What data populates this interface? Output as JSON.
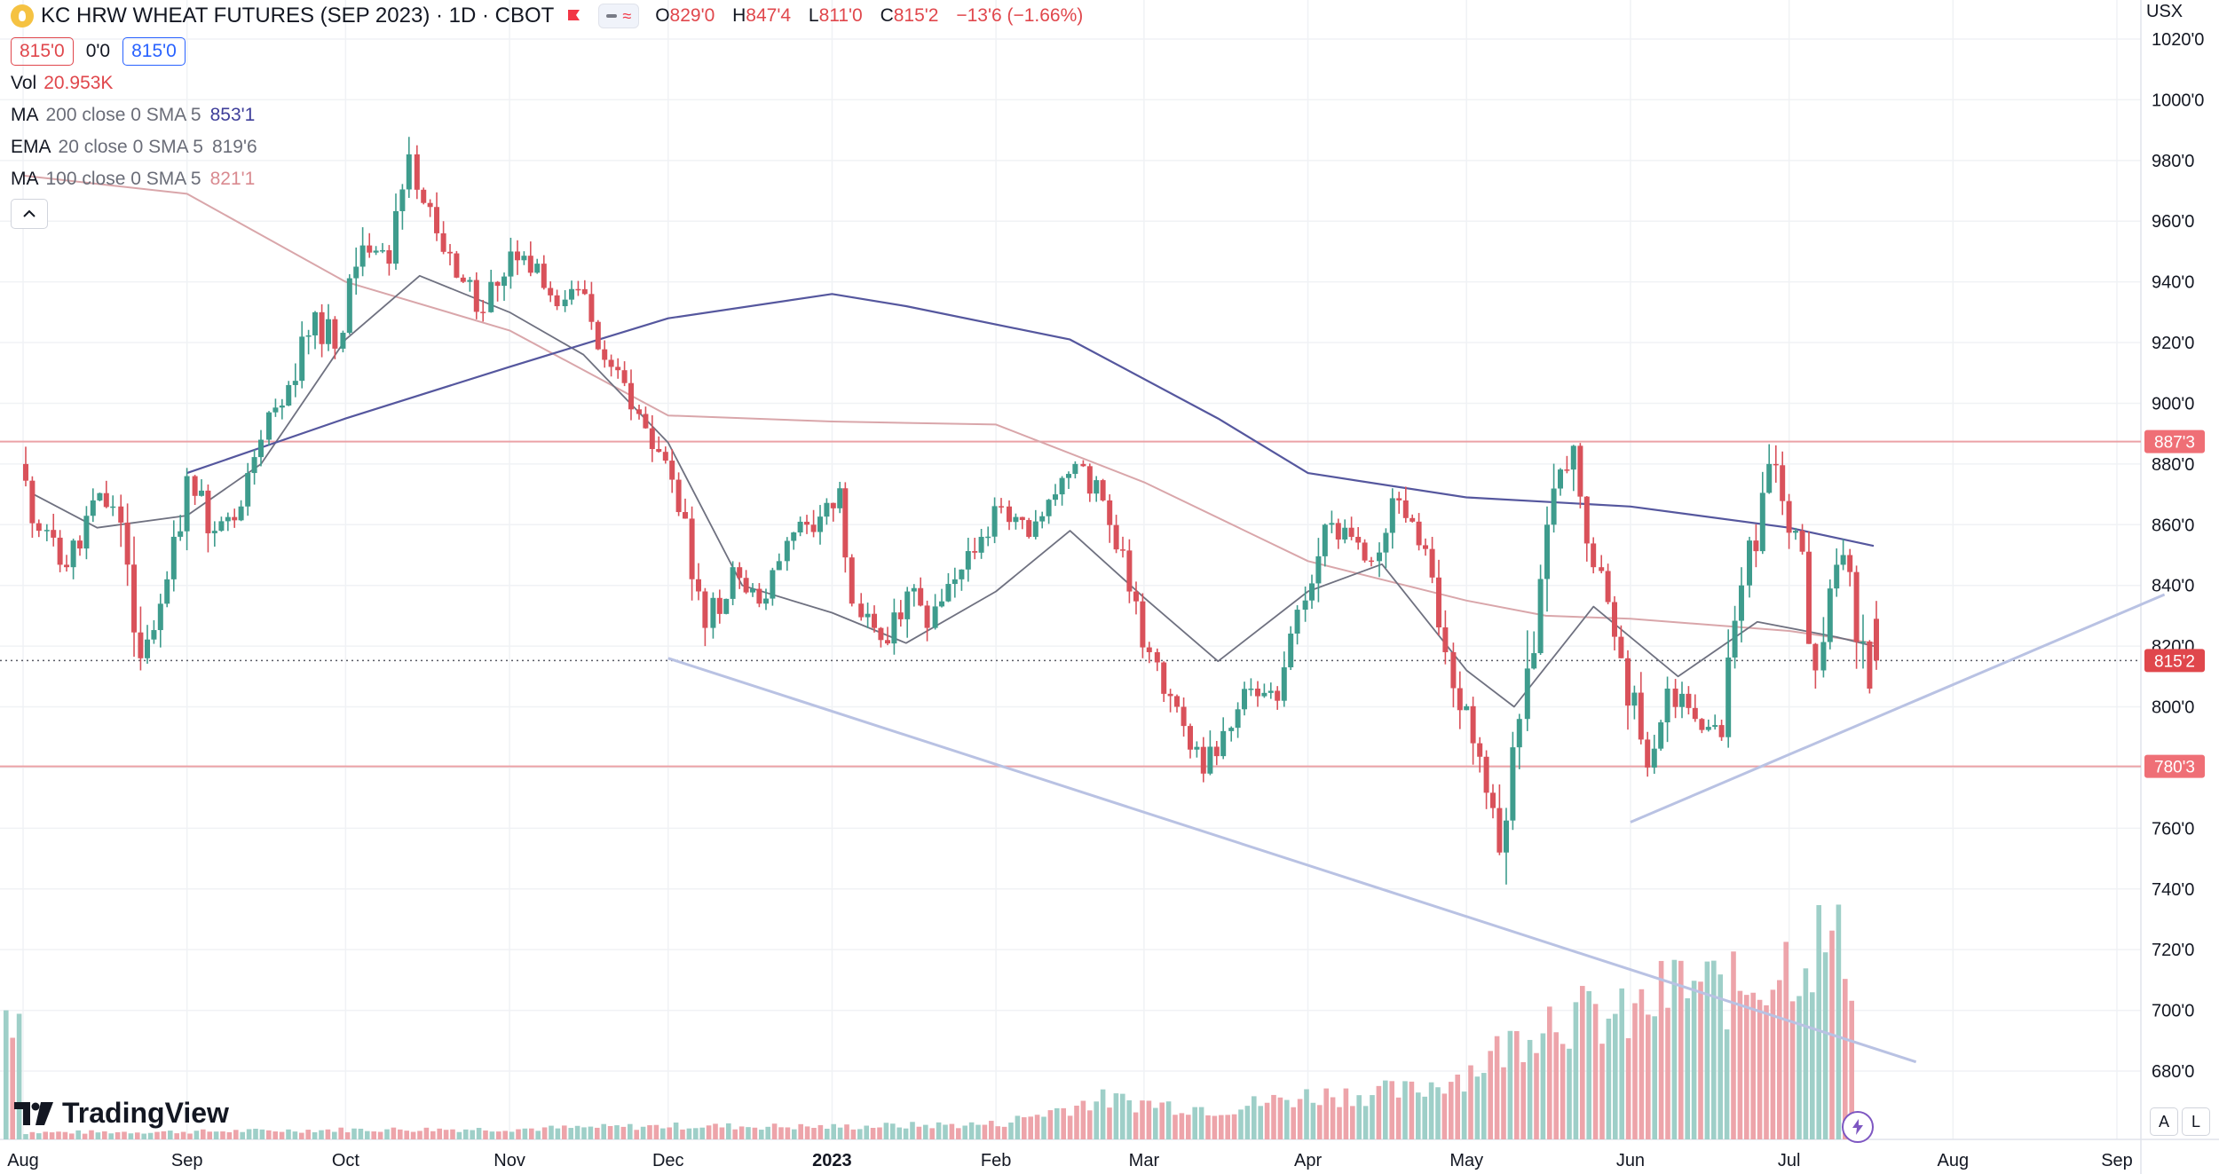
{
  "header": {
    "symbol_title": "KC HRW WHEAT FUTURES (SEP 2023) · 1D · CBOT",
    "logo_icon": "wheat-logo-icon",
    "flag_icon": "flag-icon",
    "ohlc": {
      "o_label": "O",
      "o_value": "829'0",
      "h_label": "H",
      "h_value": "847'4",
      "l_label": "L",
      "l_value": "811'0",
      "c_label": "C",
      "c_value": "815'2",
      "change": "−13'6 (−1.66%)"
    },
    "bid": "815'0",
    "spread": "0'0",
    "ask": "815'0"
  },
  "indicators": {
    "vol": {
      "name": "Vol",
      "value": "20.953K"
    },
    "ma200": {
      "name": "MA",
      "params": "200 close 0 SMA 5",
      "value": "853'1",
      "color": "#5d5fa7"
    },
    "ema20": {
      "name": "EMA",
      "params": "20 close 0 SMA 5",
      "value": "819'6",
      "color": "#7a7c8c"
    },
    "ma100": {
      "name": "MA",
      "params": "100 close 0 SMA 5",
      "value": "821'1",
      "color": "#d99fa3"
    }
  },
  "currency": "USX",
  "branding": "TradingView",
  "corner_buttons": {
    "auto": "A",
    "log": "L"
  },
  "colors": {
    "up": "#3e9c8d",
    "down": "#d9515a",
    "vol_up": "#9ecfc8",
    "vol_down": "#eda4aa",
    "hline": "#eba2a6",
    "trendline": "#b9c2e3"
  },
  "chart_data": {
    "type": "candlestick",
    "title": "KC HRW WHEAT FUTURES (SEP 2023) · 1D · CBOT",
    "x_axis_labels": [
      "Aug",
      "Sep",
      "Oct",
      "Nov",
      "Dec",
      "2023",
      "Feb",
      "Mar",
      "Apr",
      "May",
      "Jun",
      "Jul",
      "Aug",
      "Sep"
    ],
    "y_axis_labels": [
      "680'0",
      "700'0",
      "720'0",
      "740'0",
      "760'0",
      "780'0",
      "800'0",
      "820'0",
      "840'0",
      "860'0",
      "880'0",
      "900'0",
      "920'0",
      "940'0",
      "960'0",
      "980'0",
      "1000'0",
      "1020'0"
    ],
    "ylim": [
      668,
      1024
    ],
    "price_lines": [
      {
        "label": "887'3",
        "value": 887.4
      },
      {
        "label": "780'3",
        "value": 780.4
      },
      {
        "label": "815'2",
        "value": 815.25
      }
    ],
    "trendlines": [
      {
        "from": [
          "2022-12-01",
          816
        ],
        "to": [
          "2023-07-25",
          683
        ]
      },
      {
        "from": [
          "2023-06-01",
          762
        ],
        "to": [
          "2023-09-10",
          837
        ]
      }
    ],
    "ma200": [
      [
        "2022-09-01",
        877
      ],
      [
        "2022-10-01",
        895
      ],
      [
        "2022-11-01",
        912
      ],
      [
        "2022-12-01",
        928
      ],
      [
        "2023-01-01",
        936
      ],
      [
        "2023-01-15",
        932
      ],
      [
        "2023-02-15",
        921
      ],
      [
        "2023-03-15",
        895
      ],
      [
        "2023-04-01",
        877
      ],
      [
        "2023-05-01",
        869
      ],
      [
        "2023-06-01",
        866
      ],
      [
        "2023-07-01",
        859
      ],
      [
        "2023-07-17",
        853
      ]
    ],
    "ma100": [
      [
        "2022-08-01",
        975
      ],
      [
        "2022-09-01",
        969
      ],
      [
        "2022-10-01",
        940
      ],
      [
        "2022-11-01",
        924
      ],
      [
        "2022-12-01",
        896
      ],
      [
        "2023-01-01",
        894
      ],
      [
        "2023-02-01",
        893
      ],
      [
        "2023-03-01",
        874
      ],
      [
        "2023-04-01",
        848
      ],
      [
        "2023-05-01",
        835
      ],
      [
        "2023-05-16",
        830
      ],
      [
        "2023-06-01",
        829
      ],
      [
        "2023-07-01",
        825
      ],
      [
        "2023-07-17",
        821
      ]
    ],
    "ema20": [
      [
        "2022-08-03",
        870
      ],
      [
        "2022-08-15",
        859
      ],
      [
        "2022-09-01",
        863
      ],
      [
        "2022-09-15",
        880
      ],
      [
        "2022-10-01",
        921
      ],
      [
        "2022-10-15",
        942
      ],
      [
        "2022-11-01",
        930
      ],
      [
        "2022-11-15",
        916
      ],
      [
        "2022-12-01",
        887
      ],
      [
        "2022-12-15",
        840
      ],
      [
        "2023-01-01",
        831
      ],
      [
        "2023-01-15",
        821
      ],
      [
        "2023-02-01",
        838
      ],
      [
        "2023-02-15",
        858
      ],
      [
        "2023-03-01",
        836
      ],
      [
        "2023-03-15",
        815
      ],
      [
        "2023-04-01",
        838
      ],
      [
        "2023-04-15",
        847
      ],
      [
        "2023-05-01",
        812
      ],
      [
        "2023-05-10",
        800
      ],
      [
        "2023-05-25",
        833
      ],
      [
        "2023-06-10",
        810
      ],
      [
        "2023-06-25",
        828
      ],
      [
        "2023-07-10",
        823
      ],
      [
        "2023-07-17",
        820
      ]
    ],
    "candles_ohlc": [
      [
        "2022-08-01",
        880,
        887,
        852,
        858
      ],
      [
        "2022-08-05",
        858,
        866,
        835,
        846
      ],
      [
        "2022-08-10",
        846,
        872,
        842,
        868
      ],
      [
        "2022-08-15",
        868,
        884,
        858,
        866
      ],
      [
        "2022-08-19",
        866,
        870,
        812,
        816
      ],
      [
        "2022-08-24",
        816,
        848,
        812,
        842
      ],
      [
        "2022-08-29",
        842,
        880,
        838,
        876
      ],
      [
        "2022-09-02",
        876,
        886,
        850,
        858
      ],
      [
        "2022-09-07",
        858,
        872,
        854,
        866
      ],
      [
        "2022-09-12",
        866,
        892,
        862,
        888
      ],
      [
        "2022-09-16",
        888,
        912,
        882,
        906
      ],
      [
        "2022-09-21",
        906,
        935,
        902,
        930
      ],
      [
        "2022-09-26",
        930,
        950,
        912,
        918
      ],
      [
        "2022-09-30",
        918,
        958,
        914,
        952
      ],
      [
        "2022-10-05",
        952,
        965,
        940,
        946
      ],
      [
        "2022-10-10",
        946,
        990,
        944,
        982
      ],
      [
        "2022-10-14",
        982,
        985,
        950,
        956
      ],
      [
        "2022-10-19",
        956,
        960,
        936,
        940
      ],
      [
        "2022-10-24",
        940,
        948,
        924,
        930
      ],
      [
        "2022-10-28",
        930,
        956,
        926,
        950
      ],
      [
        "2022-11-02",
        950,
        968,
        940,
        946
      ],
      [
        "2022-11-07",
        946,
        950,
        926,
        932
      ],
      [
        "2022-11-11",
        932,
        944,
        920,
        936
      ],
      [
        "2022-11-16",
        936,
        940,
        904,
        912
      ],
      [
        "2022-11-21",
        912,
        918,
        892,
        898
      ],
      [
        "2022-11-25",
        898,
        902,
        878,
        884
      ],
      [
        "2022-11-30",
        884,
        888,
        856,
        862
      ],
      [
        "2022-12-05",
        862,
        866,
        820,
        826
      ],
      [
        "2022-12-09",
        826,
        852,
        820,
        846
      ],
      [
        "2022-12-14",
        846,
        850,
        828,
        834
      ],
      [
        "2022-12-19",
        834,
        852,
        830,
        848
      ],
      [
        "2022-12-23",
        848,
        866,
        840,
        860
      ],
      [
        "2022-12-28",
        860,
        880,
        852,
        872
      ],
      [
        "2023-01-03",
        872,
        874,
        828,
        834
      ],
      [
        "2023-01-06",
        834,
        838,
        816,
        822
      ],
      [
        "2023-01-11",
        822,
        844,
        804,
        838
      ],
      [
        "2023-01-16",
        838,
        852,
        820,
        826
      ],
      [
        "2023-01-20",
        826,
        848,
        820,
        842
      ],
      [
        "2023-01-25",
        842,
        862,
        836,
        856
      ],
      [
        "2023-01-30",
        856,
        870,
        850,
        866
      ],
      [
        "2023-02-03",
        866,
        868,
        850,
        856
      ],
      [
        "2023-02-08",
        856,
        874,
        850,
        870
      ],
      [
        "2023-02-13",
        870,
        886,
        864,
        880
      ],
      [
        "2023-02-17",
        880,
        882,
        860,
        868
      ],
      [
        "2023-02-22",
        868,
        870,
        834,
        838
      ],
      [
        "2023-02-27",
        838,
        842,
        812,
        818
      ],
      [
        "2023-03-03",
        818,
        826,
        796,
        800
      ],
      [
        "2023-03-08",
        800,
        806,
        774,
        778
      ],
      [
        "2023-03-13",
        778,
        798,
        766,
        792
      ],
      [
        "2023-03-17",
        792,
        810,
        788,
        806
      ],
      [
        "2023-03-22",
        806,
        818,
        798,
        802
      ],
      [
        "2023-03-27",
        802,
        836,
        800,
        832
      ],
      [
        "2023-03-31",
        832,
        866,
        828,
        860
      ],
      [
        "2023-04-05",
        860,
        876,
        852,
        856
      ],
      [
        "2023-04-10",
        856,
        862,
        842,
        848
      ],
      [
        "2023-04-14",
        848,
        872,
        838,
        868
      ],
      [
        "2023-04-19",
        868,
        874,
        848,
        852
      ],
      [
        "2023-04-24",
        852,
        856,
        814,
        818
      ],
      [
        "2023-04-28",
        818,
        822,
        780,
        788
      ],
      [
        "2023-05-03",
        788,
        790,
        746,
        752
      ],
      [
        "2023-05-08",
        752,
        800,
        738,
        796
      ],
      [
        "2023-05-12",
        796,
        866,
        792,
        860
      ],
      [
        "2023-05-17",
        860,
        902,
        856,
        886
      ],
      [
        "2023-05-22",
        886,
        892,
        840,
        846
      ],
      [
        "2023-05-26",
        846,
        850,
        810,
        816
      ],
      [
        "2023-05-31",
        816,
        822,
        776,
        780
      ],
      [
        "2023-06-05",
        780,
        812,
        776,
        806
      ],
      [
        "2023-06-09",
        806,
        818,
        790,
        796
      ],
      [
        "2023-06-14",
        796,
        806,
        784,
        790
      ],
      [
        "2023-06-19",
        790,
        846,
        786,
        840
      ],
      [
        "2023-06-23",
        840,
        888,
        836,
        880
      ],
      [
        "2023-06-28",
        880,
        888,
        852,
        858
      ],
      [
        "2023-07-03",
        858,
        862,
        806,
        812
      ],
      [
        "2023-07-07",
        812,
        856,
        808,
        850
      ],
      [
        "2023-07-12",
        850,
        852,
        800,
        806
      ],
      [
        "2023-07-17",
        829,
        847.5,
        811,
        815.25
      ]
    ],
    "volume": [
      [
        "2022-08-01",
        3.2
      ],
      [
        "2022-09-01",
        3.6
      ],
      [
        "2022-10-01",
        4.5
      ],
      [
        "2022-11-01",
        4.8
      ],
      [
        "2022-12-01",
        6.2
      ],
      [
        "2023-01-01",
        5.8
      ],
      [
        "2023-02-01",
        7.1
      ],
      [
        "2023-02-20",
        18.5
      ],
      [
        "2023-03-15",
        14.0
      ],
      [
        "2023-04-01",
        20.3
      ],
      [
        "2023-04-20",
        22.0
      ],
      [
        "2023-05-01",
        31.5
      ],
      [
        "2023-05-10",
        46.0
      ],
      [
        "2023-05-15",
        58.0
      ],
      [
        "2023-05-31",
        55.0
      ],
      [
        "2023-06-10",
        72.0
      ],
      [
        "2023-06-20",
        68.0
      ],
      [
        "2023-06-28",
        80.0
      ],
      [
        "2023-07-07",
        92.0
      ],
      [
        "2023-07-13",
        84.0
      ],
      [
        "2023-07-17",
        60.0
      ]
    ],
    "last_volume": "20.953K"
  }
}
